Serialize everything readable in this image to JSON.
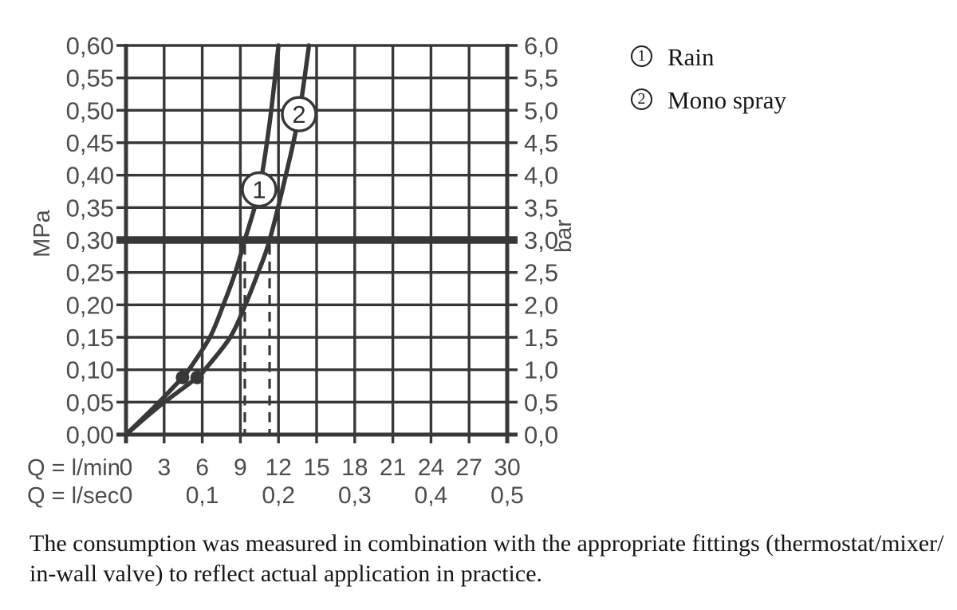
{
  "chart_data": {
    "type": "line",
    "x_axis": {
      "row1_label": "Q = l/min",
      "row2_label": "Q = l/sec",
      "ticks_lmin": [
        0,
        3,
        6,
        9,
        12,
        15,
        18,
        21,
        24,
        27,
        30
      ],
      "ticks_lsec": [
        {
          "q": 0,
          "text": "0"
        },
        {
          "q": 6,
          "text": "0,1"
        },
        {
          "q": 12,
          "text": "0,2"
        },
        {
          "q": 18,
          "text": "0,3"
        },
        {
          "q": 24,
          "text": "0,4"
        },
        {
          "q": 30,
          "text": "0,5"
        }
      ],
      "min": 0,
      "max": 30,
      "grid_step": 3
    },
    "y_left": {
      "unit": "MPa",
      "min": 0,
      "max": 0.6,
      "step": 0.05,
      "ticks": [
        "0,60",
        "0,55",
        "0,50",
        "0,45",
        "0,40",
        "0,35",
        "0,30",
        "0,25",
        "0,20",
        "0,15",
        "0,10",
        "0,05",
        "0,00"
      ]
    },
    "y_right": {
      "unit": "bar",
      "min": 0,
      "max": 6,
      "step": 0.5,
      "ticks": [
        "6,0",
        "5,5",
        "5,0",
        "4,5",
        "4,0",
        "3,5",
        "3,0",
        "2,5",
        "2,0",
        "1,5",
        "1,0",
        "0,5",
        "0,0"
      ]
    },
    "reference_pressure_mpa": 0.3,
    "operating_flow_q_lmin": [
      9.35,
      11.3
    ],
    "measured_points": [
      {
        "q": 4.45,
        "mpa": 0.088
      },
      {
        "q": 5.6,
        "mpa": 0.088
      }
    ],
    "series": [
      {
        "number": "1",
        "name": "Rain",
        "points": [
          [
            0,
            0
          ],
          [
            2.2,
            0.042
          ],
          [
            4.45,
            0.088
          ],
          [
            4.95,
            0.1
          ],
          [
            6.6,
            0.15
          ],
          [
            7.66,
            0.2
          ],
          [
            8.6,
            0.25
          ],
          [
            9.35,
            0.3
          ],
          [
            10.48,
            0.378
          ],
          [
            11.3,
            0.48
          ],
          [
            12.0,
            0.6
          ]
        ],
        "badge": {
          "q": 10.48,
          "mpa": 0.378
        }
      },
      {
        "number": "2",
        "name": "Mono spray",
        "points": [
          [
            0,
            0
          ],
          [
            2.5,
            0.042
          ],
          [
            5.6,
            0.088
          ],
          [
            6.2,
            0.1
          ],
          [
            8.2,
            0.15
          ],
          [
            9.39,
            0.2
          ],
          [
            10.4,
            0.25
          ],
          [
            11.3,
            0.3
          ],
          [
            12.7,
            0.41
          ],
          [
            13.62,
            0.494
          ],
          [
            14.4,
            0.6
          ]
        ],
        "badge": {
          "q": 13.62,
          "mpa": 0.494
        }
      }
    ],
    "colors": {
      "ink": "#383838",
      "label": "#4d4d4d"
    }
  },
  "legend": {
    "items": [
      {
        "number": "1",
        "label": "Rain"
      },
      {
        "number": "2",
        "label": "Mono spray"
      }
    ]
  },
  "caption": {
    "line1": "The consumption was measured in combination with the appropriate fittings (thermostat/mixer/",
    "line2": "in-wall valve) to reflect actual application in practice."
  }
}
